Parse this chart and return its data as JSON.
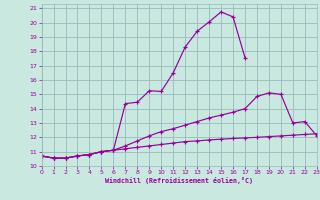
{
  "xlabel": "Windchill (Refroidissement éolien,°C)",
  "bg_color": "#c8e8e0",
  "grid_color": "#99bbbb",
  "line_color": "#990099",
  "xlim": [
    0,
    23
  ],
  "ylim": [
    10,
    21.3
  ],
  "yticks": [
    10,
    11,
    12,
    13,
    14,
    15,
    16,
    17,
    18,
    19,
    20,
    21
  ],
  "xticks": [
    0,
    1,
    2,
    3,
    4,
    5,
    6,
    7,
    8,
    9,
    10,
    11,
    12,
    13,
    14,
    15,
    16,
    17,
    18,
    19,
    20,
    21,
    22,
    23
  ],
  "line1_x": [
    0,
    1,
    2,
    3,
    4,
    5,
    6,
    7,
    8,
    9,
    10,
    11,
    12,
    13,
    14,
    15,
    16,
    17
  ],
  "line1_y": [
    10.7,
    10.55,
    10.55,
    10.7,
    10.8,
    11.0,
    11.1,
    14.35,
    14.45,
    15.25,
    15.2,
    16.5,
    18.3,
    19.4,
    20.05,
    20.75,
    20.4,
    17.55
  ],
  "line2_x": [
    0,
    1,
    2,
    3,
    4,
    5,
    6,
    7,
    8,
    9,
    10,
    11,
    12,
    13,
    14,
    15,
    16,
    17,
    18,
    19,
    20,
    21,
    22,
    23
  ],
  "line2_y": [
    10.7,
    10.55,
    10.55,
    10.7,
    10.8,
    11.0,
    11.1,
    11.4,
    11.75,
    12.1,
    12.4,
    12.6,
    12.85,
    13.1,
    13.35,
    13.55,
    13.75,
    14.0,
    14.85,
    15.1,
    15.0,
    13.0,
    13.1,
    12.1
  ],
  "line3_x": [
    0,
    1,
    2,
    3,
    4,
    5,
    6,
    7,
    8,
    9,
    10,
    11,
    12,
    13,
    14,
    15,
    16,
    17,
    18,
    19,
    20,
    21,
    22,
    23
  ],
  "line3_y": [
    10.7,
    10.55,
    10.55,
    10.7,
    10.8,
    11.0,
    11.1,
    11.2,
    11.3,
    11.4,
    11.5,
    11.6,
    11.7,
    11.75,
    11.82,
    11.87,
    11.92,
    11.96,
    12.0,
    12.05,
    12.1,
    12.15,
    12.2,
    12.25
  ]
}
